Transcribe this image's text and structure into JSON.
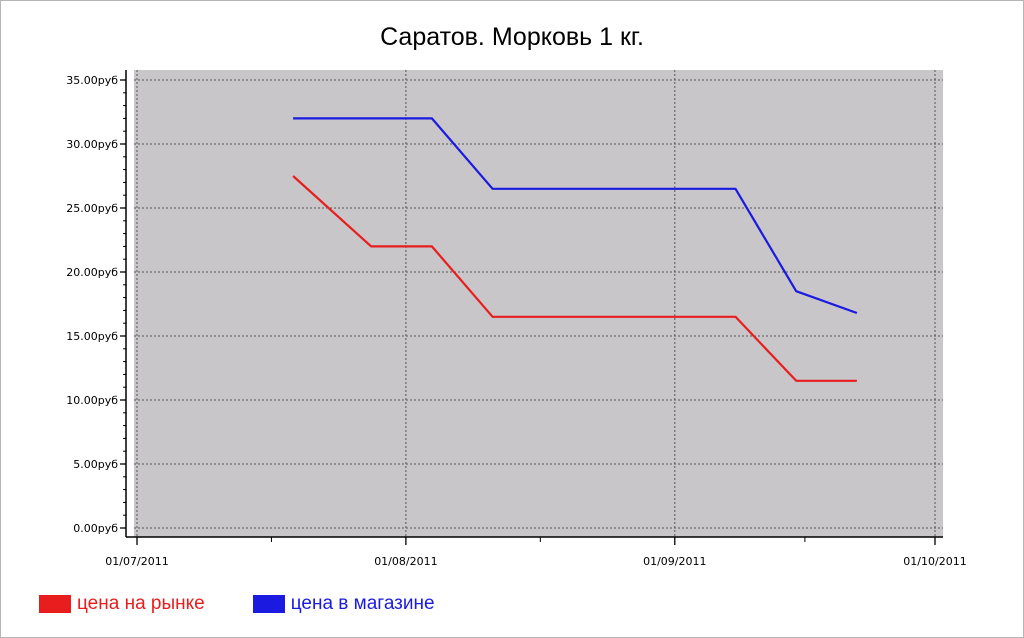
{
  "chart_data": {
    "type": "line",
    "title": "Саратов. Морковь 1 кг.",
    "xlabel": "",
    "ylabel": "",
    "x_start": "01/07/2011",
    "x_end": "01/10/2011",
    "x_ticks": [
      "01/07/2011",
      "01/08/2011",
      "01/09/2011",
      "01/10/2011"
    ],
    "y_ticks": [
      "0.00руб",
      "5.00руб",
      "10.00руб",
      "15.00руб",
      "20.00руб",
      "25.00руб",
      "30.00руб",
      "35.00руб"
    ],
    "ylim": [
      0,
      35
    ],
    "grid": true,
    "legend_position": "bottom-left",
    "background": "#c8c6c9",
    "series": [
      {
        "name": "цена на рынке",
        "color": "#e81e1e",
        "points": [
          {
            "x": "19/07/2011",
            "y": 27.5
          },
          {
            "x": "28/07/2011",
            "y": 22.0
          },
          {
            "x": "04/08/2011",
            "y": 22.0
          },
          {
            "x": "11/08/2011",
            "y": 16.5
          },
          {
            "x": "01/09/2011",
            "y": 16.5
          },
          {
            "x": "08/09/2011",
            "y": 16.5
          },
          {
            "x": "15/09/2011",
            "y": 11.5
          },
          {
            "x": "22/09/2011",
            "y": 11.5
          }
        ]
      },
      {
        "name": "цена в магазине",
        "color": "#1a1ae0",
        "points": [
          {
            "x": "19/07/2011",
            "y": 32.0
          },
          {
            "x": "28/07/2011",
            "y": 32.0
          },
          {
            "x": "04/08/2011",
            "y": 32.0
          },
          {
            "x": "11/08/2011",
            "y": 26.5
          },
          {
            "x": "01/09/2011",
            "y": 26.5
          },
          {
            "x": "08/09/2011",
            "y": 26.5
          },
          {
            "x": "15/09/2011",
            "y": 18.5
          },
          {
            "x": "22/09/2011",
            "y": 16.8
          }
        ]
      }
    ]
  }
}
